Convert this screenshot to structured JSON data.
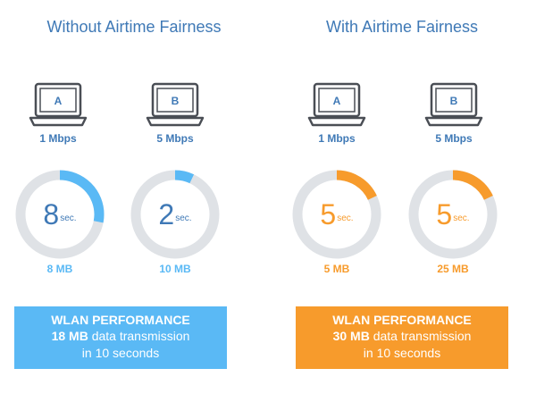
{
  "colors": {
    "heading": "#3f79b6",
    "blue": "#5ab9f5",
    "orange": "#f79b2c",
    "ring_track": "#dfe2e6",
    "laptop": "#4a4e55",
    "label_blue": "#3f79b6"
  },
  "left": {
    "title": "Without Airtime Fairness",
    "devices": [
      {
        "letter": "A",
        "speed": "1 Mbps",
        "time_value": "8",
        "time_unit": "sec.",
        "fraction": 0.28,
        "data": "8 MB"
      },
      {
        "letter": "B",
        "speed": "5 Mbps",
        "time_value": "2",
        "time_unit": "sec.",
        "fraction": 0.07,
        "data": "10 MB"
      }
    ],
    "box": {
      "title": "WLAN PERFORMANCE",
      "amount": "18 MB",
      "line1_rest": " data transmission",
      "line2": "in 10 seconds"
    }
  },
  "right": {
    "title": "With Airtime Fairness",
    "devices": [
      {
        "letter": "A",
        "speed": "1 Mbps",
        "time_value": "5",
        "time_unit": "sec.",
        "fraction": 0.18,
        "data": "5 MB"
      },
      {
        "letter": "B",
        "speed": "5 Mbps",
        "time_value": "5",
        "time_unit": "sec.",
        "fraction": 0.18,
        "data": "25 MB"
      }
    ],
    "box": {
      "title": "WLAN PERFORMANCE",
      "amount": "30 MB",
      "line1_rest": " data transmission",
      "line2": "in 10 seconds"
    }
  }
}
